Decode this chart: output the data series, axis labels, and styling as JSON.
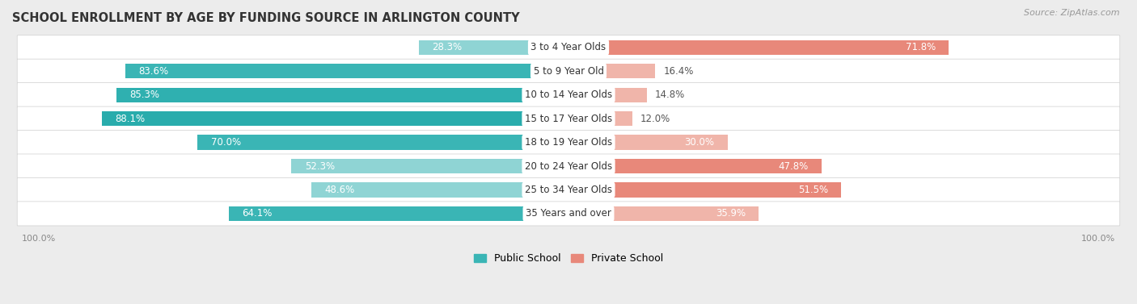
{
  "title": "SCHOOL ENROLLMENT BY AGE BY FUNDING SOURCE IN ARLINGTON COUNTY",
  "source": "Source: ZipAtlas.com",
  "categories": [
    "3 to 4 Year Olds",
    "5 to 9 Year Old",
    "10 to 14 Year Olds",
    "15 to 17 Year Olds",
    "18 to 19 Year Olds",
    "20 to 24 Year Olds",
    "25 to 34 Year Olds",
    "35 Years and over"
  ],
  "public_values": [
    28.3,
    83.6,
    85.3,
    88.1,
    70.0,
    52.3,
    48.6,
    64.1
  ],
  "private_values": [
    71.8,
    16.4,
    14.8,
    12.0,
    30.0,
    47.8,
    51.5,
    35.9
  ],
  "public_colors": [
    "#8fd4d4",
    "#3ab5b5",
    "#2fb0b0",
    "#29acac",
    "#3ab5b5",
    "#8fd4d4",
    "#8fd4d4",
    "#3ab5b5"
  ],
  "private_colors": [
    "#e8887a",
    "#f0b5aa",
    "#f0b5aa",
    "#f0b5aa",
    "#f0b5aa",
    "#e8887a",
    "#e8887a",
    "#f0b5aa"
  ],
  "background_color": "#ececec",
  "bar_background": "#ffffff",
  "title_fontsize": 10.5,
  "source_fontsize": 8,
  "bar_label_fontsize": 8.5,
  "cat_label_fontsize": 8.5,
  "legend_fontsize": 9,
  "axis_label_fontsize": 8
}
